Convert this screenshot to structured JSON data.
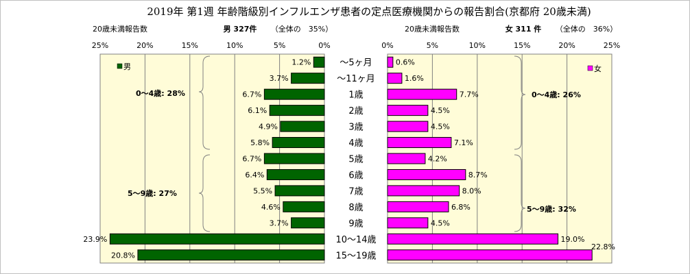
{
  "title": "2019年 第1週 年齢階級別インフルエンザ患者の定点医療機関からの報告割合(京都府 20歳未満)",
  "male": {
    "caption": "20歳未満報告数",
    "summary": "男 327件",
    "share": "（全体の　35%）",
    "legend": "男",
    "group_labels": [
      "0～4歳: 28%",
      "5～9歳: 27%"
    ]
  },
  "female": {
    "caption": "20歳未満報告数",
    "summary": "女 311 件",
    "share": "（全体の　36%）",
    "legend": "女",
    "group_labels": [
      "0～4歳: 26%",
      "5～9歳: 32%"
    ]
  },
  "colors": {
    "male": "#006400",
    "female": "#ff00ff",
    "panel": "#fffcd8"
  },
  "chart_data": {
    "type": "bar",
    "orientation": "horizontal",
    "categories": [
      "～5ヶ月",
      "～11ヶ月",
      "1歳",
      "2歳",
      "3歳",
      "4歳",
      "5歳",
      "6歳",
      "7歳",
      "8歳",
      "9歳",
      "10～14歳",
      "15～19歳"
    ],
    "series": [
      {
        "name": "男",
        "values": [
          1.2,
          3.7,
          6.7,
          6.1,
          4.9,
          5.8,
          6.7,
          6.4,
          5.5,
          4.6,
          3.7,
          23.9,
          20.8
        ],
        "labels": [
          "1.2%",
          "3.7%",
          "6.7%",
          "6.1%",
          "4.9%",
          "5.8%",
          "6.7%",
          "6.4%",
          "5.5%",
          "4.6%",
          "3.7%",
          "23.9%",
          "20.8%"
        ]
      },
      {
        "name": "女",
        "values": [
          0.6,
          1.6,
          7.7,
          4.5,
          4.5,
          7.1,
          4.2,
          8.7,
          8.0,
          6.8,
          4.5,
          19.0,
          22.8
        ],
        "labels": [
          "0.6%",
          "1.6%",
          "7.7%",
          "4.5%",
          "4.5%",
          "7.1%",
          "4.2%",
          "8.7%",
          "8.0%",
          "6.8%",
          "4.5%",
          "19.0%",
          "22.8%"
        ]
      }
    ],
    "xlim": [
      0,
      25
    ],
    "ticks": [
      25,
      20,
      15,
      10,
      5,
      0
    ],
    "tick_labels_male": [
      "25%",
      "20%",
      "15%",
      "10%",
      "5%",
      "0%"
    ],
    "tick_labels_female": [
      "0%",
      "5%",
      "10%",
      "15%",
      "20%",
      "25%"
    ],
    "grid": true,
    "legend_position": "top-left / top-right"
  }
}
